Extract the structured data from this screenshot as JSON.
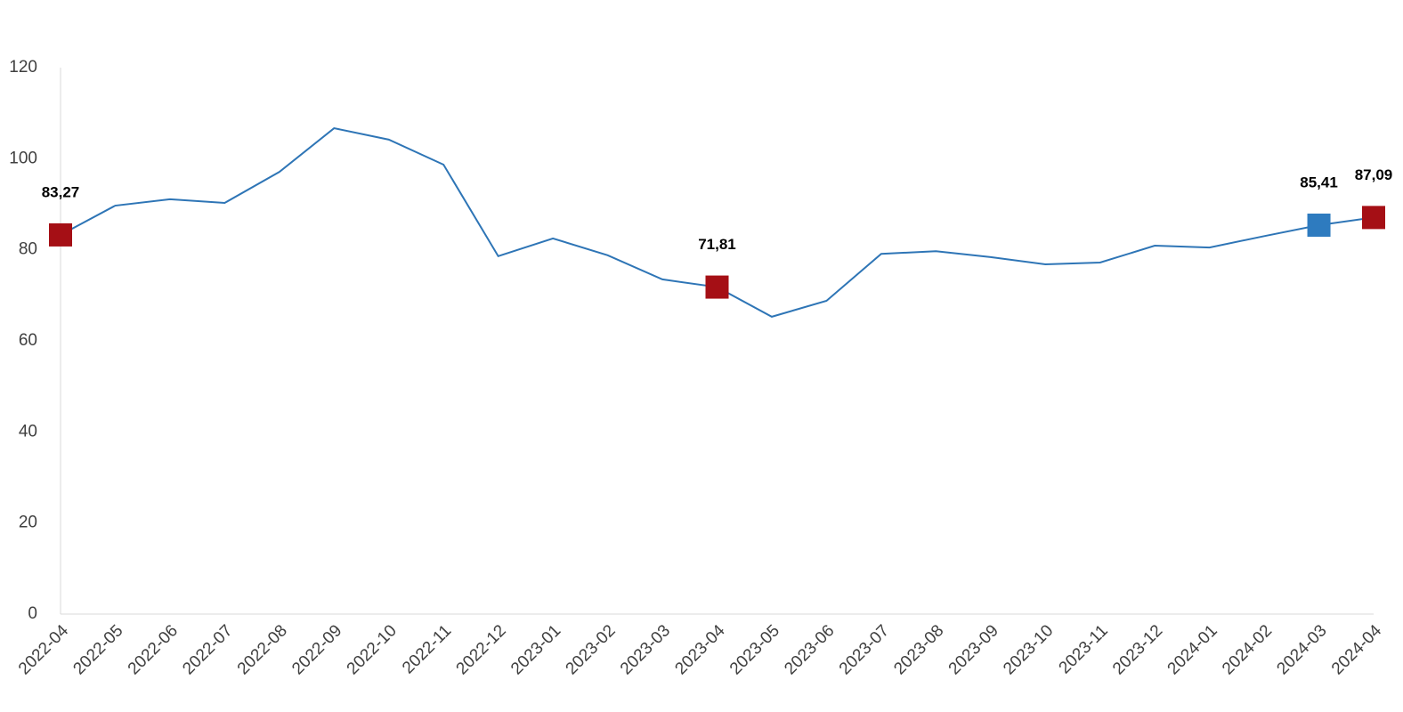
{
  "chart_data": {
    "type": "line",
    "categories": [
      "2022-04",
      "2022-05",
      "2022-06",
      "2022-07",
      "2022-08",
      "2022-09",
      "2022-10",
      "2022-11",
      "2022-12",
      "2023-01",
      "2023-02",
      "2023-03",
      "2023-04",
      "2023-05",
      "2023-06",
      "2023-07",
      "2023-08",
      "2023-09",
      "2023-10",
      "2023-11",
      "2023-12",
      "2024-01",
      "2024-02",
      "2024-03",
      "2024-04"
    ],
    "values": [
      83.27,
      89.7,
      91.1,
      90.3,
      97.1,
      106.7,
      104.2,
      98.7,
      78.6,
      82.5,
      78.8,
      73.5,
      71.81,
      65.3,
      68.8,
      79.1,
      79.7,
      78.4,
      76.8,
      77.2,
      80.9,
      80.5,
      83.0,
      85.41,
      87.09
    ],
    "value_labels": [
      "83,27",
      null,
      null,
      null,
      null,
      null,
      null,
      null,
      null,
      null,
      null,
      null,
      "71,81",
      null,
      null,
      null,
      null,
      null,
      null,
      null,
      null,
      null,
      null,
      "85,41",
      "87,09"
    ],
    "marker_colors": [
      "#a50f15",
      null,
      null,
      null,
      null,
      null,
      null,
      null,
      null,
      null,
      null,
      null,
      "#a50f15",
      null,
      null,
      null,
      null,
      null,
      null,
      null,
      null,
      null,
      null,
      "#2e7bbf",
      "#a50f15"
    ],
    "color": "#2e75b6",
    "ylim": [
      0,
      120
    ],
    "yticks": [
      0,
      20,
      40,
      60,
      80,
      100,
      120
    ],
    "grid": false
  }
}
